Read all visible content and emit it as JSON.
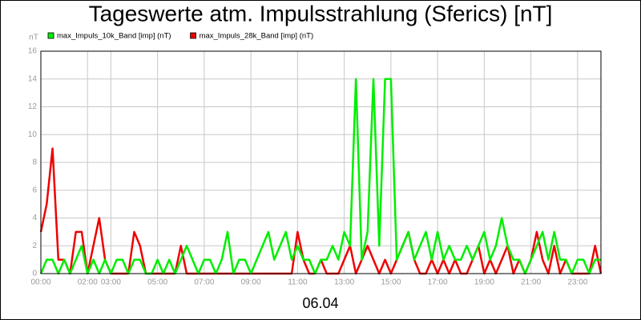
{
  "chart_data": {
    "type": "line",
    "title": "Tageswerte atm. Impulsstrahlung (Sferics) [nT]",
    "y_label": "nT",
    "x_label": "06.04",
    "xlim": [
      0,
      24
    ],
    "xticks": [
      {
        "value": 0,
        "label": "00:00"
      },
      {
        "value": 2,
        "label": "02:00"
      },
      {
        "value": 3,
        "label": "03:00"
      },
      {
        "value": 5,
        "label": "05:00"
      },
      {
        "value": 7,
        "label": "07:00"
      },
      {
        "value": 9,
        "label": "09:00"
      },
      {
        "value": 11,
        "label": "11:00"
      },
      {
        "value": 13,
        "label": "13:00"
      },
      {
        "value": 15,
        "label": "15:00"
      },
      {
        "value": 17,
        "label": "17:00"
      },
      {
        "value": 19,
        "label": "19:00"
      },
      {
        "value": 21,
        "label": "21:00"
      },
      {
        "value": 23,
        "label": "23:00"
      }
    ],
    "ylim": [
      0,
      16
    ],
    "yticks": [
      0,
      2,
      4,
      6,
      8,
      10,
      12,
      14,
      16
    ],
    "grid": true,
    "x": [
      0,
      0.25,
      0.5,
      0.75,
      1,
      1.25,
      1.5,
      1.75,
      2,
      2.25,
      2.5,
      2.75,
      3,
      3.25,
      3.5,
      3.75,
      4,
      4.25,
      4.5,
      4.75,
      5,
      5.25,
      5.5,
      5.75,
      6,
      6.25,
      6.5,
      6.75,
      7,
      7.25,
      7.5,
      7.75,
      8,
      8.25,
      8.5,
      8.75,
      9,
      9.25,
      9.5,
      9.75,
      10,
      10.25,
      10.5,
      10.75,
      11,
      11.25,
      11.5,
      11.75,
      12,
      12.25,
      12.5,
      12.75,
      13,
      13.25,
      13.5,
      13.75,
      14,
      14.25,
      14.5,
      14.75,
      15,
      15.25,
      15.5,
      15.75,
      16,
      16.25,
      16.5,
      16.75,
      17,
      17.25,
      17.5,
      17.75,
      18,
      18.25,
      18.5,
      18.75,
      19,
      19.25,
      19.5,
      19.75,
      20,
      20.25,
      20.5,
      20.75,
      21,
      21.25,
      21.5,
      21.75,
      22,
      22.25,
      22.5,
      22.75,
      23,
      23.25,
      23.5,
      23.75,
      24
    ],
    "series": [
      {
        "name": "max_Impuls_10k_Band [imp] (nT)",
        "color": "#00ee00",
        "values": [
          0,
          1,
          1,
          0,
          1,
          0,
          1,
          2,
          0,
          1,
          0,
          1,
          0,
          1,
          1,
          0,
          1,
          1,
          0,
          0,
          1,
          0,
          1,
          0,
          1,
          2,
          1,
          0,
          1,
          1,
          0,
          1,
          3,
          0,
          1,
          1,
          0,
          1,
          2,
          3,
          1,
          2,
          3,
          1,
          2,
          1,
          1,
          0,
          1,
          1,
          2,
          1,
          3,
          2,
          14,
          1,
          3,
          14,
          2,
          14,
          14,
          1,
          2,
          3,
          1,
          2,
          3,
          1,
          3,
          1,
          2,
          1,
          1,
          2,
          1,
          2,
          3,
          1,
          2,
          4,
          2,
          1,
          1,
          0,
          1,
          2,
          3,
          1,
          3,
          1,
          1,
          0,
          1,
          1,
          0,
          1,
          1
        ]
      },
      {
        "name": "max_Impuls_28k_Band [imp] (nT)",
        "color": "#ee0000",
        "values": [
          3,
          5,
          9,
          1,
          1,
          0,
          3,
          3,
          0,
          2,
          4,
          1,
          0,
          0,
          0,
          0,
          3,
          2,
          0,
          0,
          0,
          0,
          0,
          0,
          2,
          0,
          0,
          0,
          0,
          0,
          0,
          0,
          0,
          0,
          0,
          0,
          0,
          0,
          0,
          0,
          0,
          0,
          0,
          0,
          3,
          1,
          0,
          0,
          1,
          0,
          0,
          0,
          1,
          2,
          0,
          1,
          2,
          1,
          0,
          1,
          0,
          1,
          2,
          3,
          1,
          0,
          0,
          1,
          0,
          1,
          0,
          1,
          0,
          0,
          1,
          2,
          0,
          1,
          0,
          1,
          2,
          0,
          1,
          0,
          1,
          3,
          1,
          0,
          2,
          0,
          1,
          0,
          0,
          0,
          0,
          2,
          0
        ]
      }
    ]
  }
}
